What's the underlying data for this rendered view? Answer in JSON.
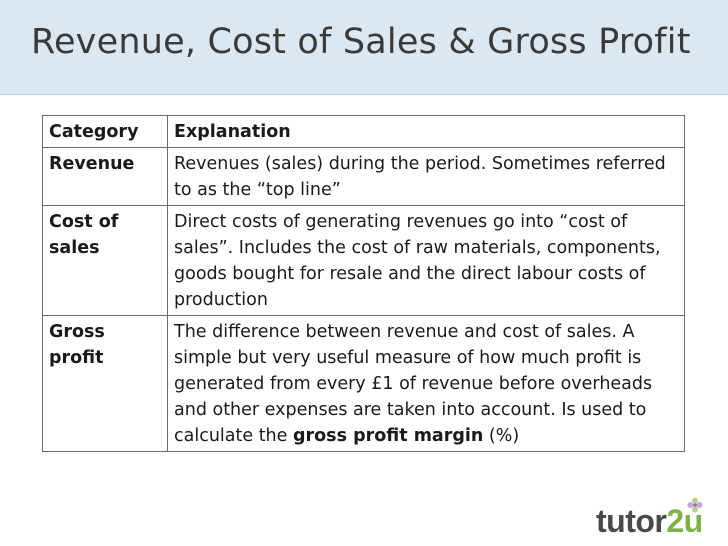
{
  "title": "Revenue, Cost of Sales & Gross Profit",
  "table": {
    "headers": [
      "Category",
      "Explanation"
    ],
    "rows": [
      {
        "category": "Revenue",
        "explanation": "Revenues (sales) during the period. Sometimes referred to as the “top line”"
      },
      {
        "category": "Cost of sales",
        "explanation": "Direct costs of generating revenues go into “cost of sales”.  Includes the cost of raw materials, components, goods bought for resale and the direct labour costs of production"
      },
      {
        "category": "Gross profit",
        "explanation_prefix": "The difference between revenue and cost of sales.  A simple but very useful measure of how much profit is generated from every £1 of revenue before overheads and other expenses are taken into account.  Is used to calculate the ",
        "explanation_bold": "gross profit margin",
        "explanation_suffix": " (%)"
      }
    ]
  },
  "logo": {
    "text_main": "tutor",
    "text_accent": "2u",
    "accent_color": "#7cb342"
  }
}
